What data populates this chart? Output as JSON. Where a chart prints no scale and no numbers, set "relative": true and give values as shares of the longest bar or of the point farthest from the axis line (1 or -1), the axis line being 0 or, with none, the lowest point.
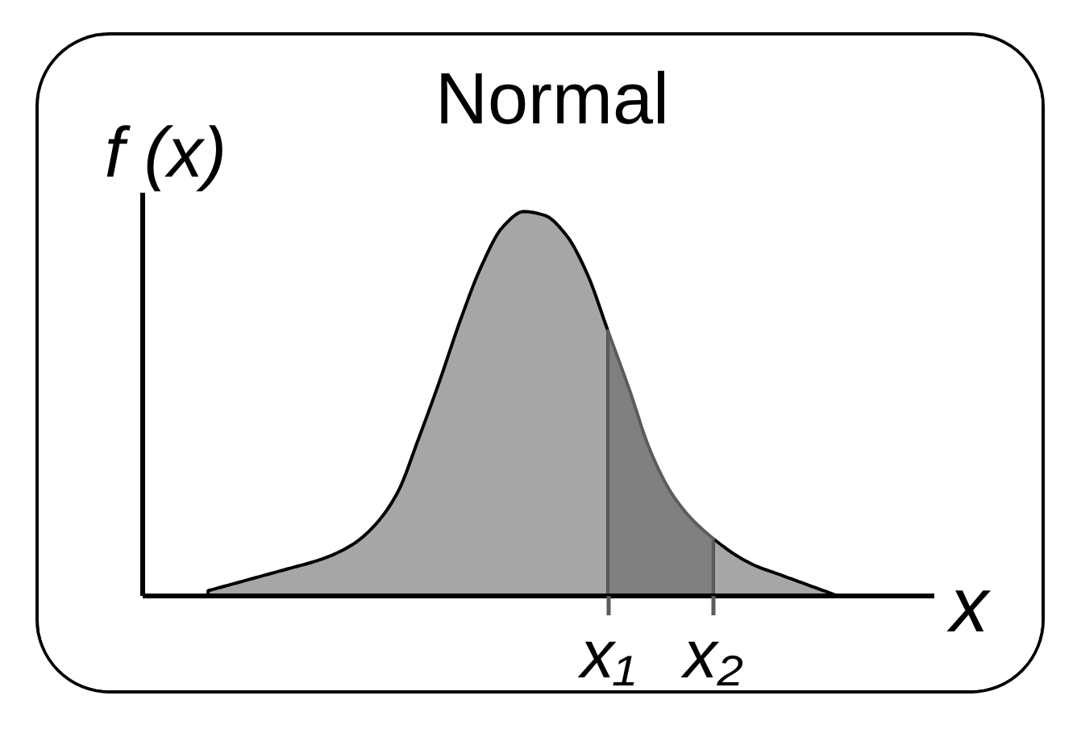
{
  "chart_data": {
    "type": "area",
    "title": "Normal",
    "xlabel": "x",
    "ylabel": "f (x)",
    "relative": true,
    "categories": [
      null,
      null,
      null,
      null,
      null,
      null,
      null,
      null,
      null,
      null,
      null,
      null,
      null,
      null,
      null,
      null,
      null,
      null,
      null,
      "x₁",
      null,
      null,
      null,
      null,
      "x₂",
      null,
      null,
      null,
      null,
      null,
      null
    ],
    "series": [
      {
        "color": "#a6a6a6",
        "values": [
          0.015,
          0.03,
          0.045,
          0.06,
          0.075,
          0.09,
          0.11,
          0.14,
          0.19,
          0.27,
          0.41,
          0.56,
          0.72,
          0.86,
          0.96,
          1.0,
          0.99,
          0.94,
          0.84,
          0.69,
          null,
          null,
          null,
          null,
          0.15,
          0.11,
          0.08,
          0.06,
          0.04,
          0.02,
          0
        ]
      },
      {
        "color": "#808080",
        "values": [
          null,
          null,
          null,
          null,
          null,
          null,
          null,
          null,
          null,
          null,
          null,
          null,
          null,
          null,
          null,
          null,
          null,
          null,
          null,
          0.69,
          0.54,
          0.38,
          0.27,
          0.2,
          0.15,
          null,
          null,
          null,
          null,
          null,
          null
        ]
      }
    ]
  }
}
